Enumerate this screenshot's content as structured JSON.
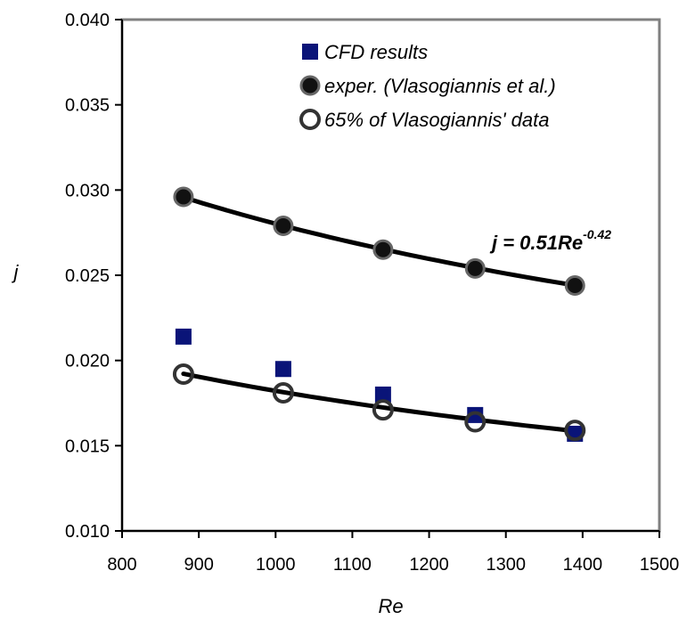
{
  "chart_data": {
    "type": "scatter",
    "xlabel": "Re",
    "ylabel": "j",
    "xlim": [
      800,
      1500
    ],
    "ylim": [
      0.01,
      0.04
    ],
    "x_ticks": [
      800,
      900,
      1000,
      1100,
      1200,
      1300,
      1400,
      1500
    ],
    "y_ticks": [
      0.01,
      0.015,
      0.02,
      0.025,
      0.03,
      0.035,
      0.04
    ],
    "x_tick_labels": [
      "800",
      "900",
      "1000",
      "1100",
      "1200",
      "1300",
      "1400",
      "1500"
    ],
    "y_tick_labels": [
      "0.010",
      "0.015",
      "0.020",
      "0.025",
      "0.030",
      "0.035",
      "0.040"
    ],
    "grid": false,
    "legend_position": "top-right",
    "series": [
      {
        "name": "CFD results",
        "marker": "filled-square",
        "color": "#0a1478",
        "x": [
          880,
          1010,
          1140,
          1260,
          1390
        ],
        "y": [
          0.0214,
          0.0195,
          0.018,
          0.0168,
          0.0157
        ]
      },
      {
        "name": "exper. (Vlasogiannis et al.)",
        "marker": "filled-circle",
        "color": "#111111",
        "x": [
          880,
          1010,
          1140,
          1260,
          1390
        ],
        "y": [
          0.0296,
          0.0279,
          0.0265,
          0.0254,
          0.0244
        ]
      },
      {
        "name": "65% of Vlasogiannis' data",
        "marker": "open-circle",
        "color": "#333333",
        "x": [
          880,
          1010,
          1140,
          1260,
          1390
        ],
        "y": [
          0.0192,
          0.0181,
          0.0171,
          0.0164,
          0.0159
        ]
      }
    ],
    "trendlines": [
      {
        "coefficient": 0.51,
        "exponent": -0.42,
        "x_range": [
          880,
          1390
        ],
        "color": "#000000"
      },
      {
        "coefficient": 0.3315,
        "exponent": -0.42,
        "x_range": [
          880,
          1390
        ],
        "color": "#000000"
      }
    ],
    "annotation": {
      "prefix": "j = 0.51Re",
      "superscript": "-0.42"
    }
  }
}
